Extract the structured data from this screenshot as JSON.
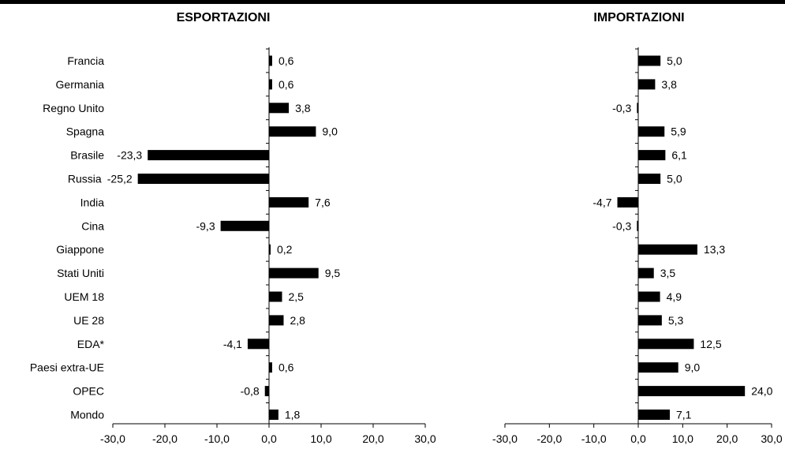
{
  "chart_data": [
    {
      "type": "bar",
      "orientation": "horizontal",
      "title": "ESPORTAZIONI",
      "categories": [
        "Francia",
        "Germania",
        "Regno Unito",
        "Spagna",
        "Brasile",
        "Russia",
        "India",
        "Cina",
        "Giappone",
        "Stati Uniti",
        "UEM 18",
        "UE 28",
        "EDA*",
        "Paesi extra-UE",
        "OPEC",
        "Mondo"
      ],
      "values": [
        0.6,
        0.6,
        3.8,
        9.0,
        -23.3,
        -25.2,
        7.6,
        -9.3,
        0.2,
        9.5,
        2.5,
        2.8,
        -4.1,
        0.6,
        -0.8,
        1.8
      ],
      "value_labels": [
        "0,6",
        "0,6",
        "3,8",
        "9,0",
        "-23,3",
        "-25,2",
        "7,6",
        "-9,3",
        "0,2",
        "9,5",
        "2,5",
        "2,8",
        "-4,1",
        "0,6",
        "-0,8",
        "1,8"
      ],
      "xlim": [
        -30,
        30
      ],
      "xticks": [
        "-30,0",
        "-20,0",
        "-10,0",
        "0,0",
        "10,0",
        "20,0",
        "30,0"
      ],
      "grid": false
    },
    {
      "type": "bar",
      "orientation": "horizontal",
      "title": "IMPORTAZIONI",
      "categories": [
        "Francia",
        "Germania",
        "Regno Unito",
        "Spagna",
        "Brasile",
        "Russia",
        "India",
        "Cina",
        "Giappone",
        "Stati Uniti",
        "UEM 18",
        "UE 28",
        "EDA*",
        "Paesi extra-UE",
        "OPEC",
        "Mondo"
      ],
      "values": [
        5.0,
        3.8,
        -0.3,
        5.9,
        6.1,
        5.0,
        -4.7,
        -0.3,
        13.3,
        3.5,
        4.9,
        5.3,
        12.5,
        9.0,
        24.0,
        7.1
      ],
      "value_labels": [
        "5,0",
        "3,8",
        "-0,3",
        "5,9",
        "6,1",
        "5,0",
        "-4,7",
        "-0,3",
        "13,3",
        "3,5",
        "4,9",
        "5,3",
        "12,5",
        "9,0",
        "24,0",
        "7,1"
      ],
      "xlim": [
        -30,
        30
      ],
      "xticks": [
        "-30,0",
        "-20,0",
        "-10,0",
        "0,0",
        "10,0",
        "20,0",
        "30,0"
      ],
      "grid": false
    }
  ]
}
